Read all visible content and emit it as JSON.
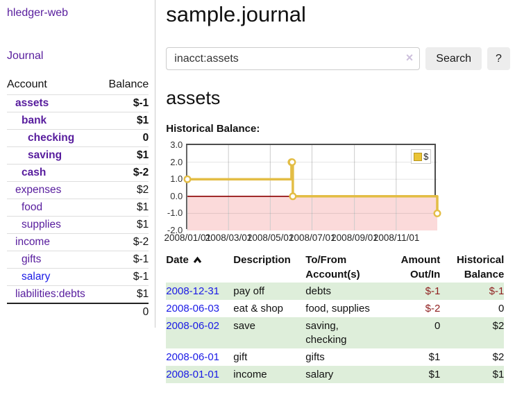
{
  "colors": {
    "link_purple": "#571c9d",
    "link_blue": "#1a1ae6",
    "negative_strong": "#9e0e0e",
    "negative_muted": "#b97f7f",
    "negative_table": "#8f1f1f",
    "row_stripe_green": "#deeeda",
    "chart_line_gold": "#e3bd45",
    "chart_negative_fill": "#fbdada",
    "chart_zero_line": "#8b0000"
  },
  "sidebar": {
    "app_title": "hledger-web",
    "journal_label": "Journal",
    "accounts": {
      "header_account": "Account",
      "header_balance": "Balance",
      "rows": [
        {
          "name": "assets",
          "balance": "$-1",
          "depth": 0,
          "bold": true,
          "balance_class": "neg-strong"
        },
        {
          "name": "bank",
          "balance": "$1",
          "depth": 1,
          "bold": true,
          "balance_class": ""
        },
        {
          "name": "checking",
          "balance": "0",
          "depth": 2,
          "bold": true,
          "balance_class": ""
        },
        {
          "name": "saving",
          "balance": "$1",
          "depth": 2,
          "bold": true,
          "balance_class": ""
        },
        {
          "name": "cash",
          "balance": "$-2",
          "depth": 1,
          "bold": true,
          "balance_class": "neg-strong"
        },
        {
          "name": "expenses",
          "balance": "$2",
          "depth": 0,
          "bold": false,
          "balance_class": ""
        },
        {
          "name": "food",
          "balance": "$1",
          "depth": 1,
          "bold": false,
          "balance_class": ""
        },
        {
          "name": "supplies",
          "balance": "$1",
          "depth": 1,
          "bold": false,
          "balance_class": ""
        },
        {
          "name": "income",
          "balance": "$-2",
          "depth": 0,
          "bold": false,
          "balance_class": "neg-muted"
        },
        {
          "name": "gifts",
          "balance": "$-1",
          "depth": 1,
          "bold": false,
          "balance_class": "neg-muted"
        },
        {
          "name": "salary",
          "balance": "$-1",
          "depth": 1,
          "bold": false,
          "balance_class": "neg-muted",
          "link_class": "blue"
        },
        {
          "name": "liabilities:debts",
          "balance": "$1",
          "depth": 0,
          "bold": false,
          "balance_class": ""
        }
      ],
      "total": "0"
    }
  },
  "main": {
    "title": "sample.journal",
    "search": {
      "value": "inacct:assets",
      "clear_icon": "×",
      "button_label": "Search",
      "help_label": "?"
    },
    "account_heading": "assets",
    "chart_label": "Historical Balance:"
  },
  "chart_data": {
    "type": "line",
    "step": true,
    "title": "Historical Balance:",
    "x_range": [
      "2008-01-01",
      "2008-12-31"
    ],
    "ylim": [
      -2,
      3
    ],
    "y_ticks": [
      "3.0",
      "2.0",
      "1.0",
      "0.0",
      "-1.0",
      "-2.0"
    ],
    "x_ticks": [
      {
        "label": "2008/01/01",
        "date": "2008-01-01"
      },
      {
        "label": "2008/03/01",
        "date": "2008-03-01"
      },
      {
        "label": "2008/05/01",
        "date": "2008-05-01"
      },
      {
        "label": "2008/07/01",
        "date": "2008-07-01"
      },
      {
        "label": "2008/09/01",
        "date": "2008-09-01"
      },
      {
        "label": "2008/11/01",
        "date": "2008-11-01"
      }
    ],
    "series": [
      {
        "name": "$",
        "color": "#e3bd45",
        "points": [
          {
            "date": "2008-01-01",
            "value": 1
          },
          {
            "date": "2008-06-01",
            "value": 2
          },
          {
            "date": "2008-06-02",
            "value": 2
          },
          {
            "date": "2008-06-03",
            "value": 0
          },
          {
            "date": "2008-12-31",
            "value": -1
          }
        ]
      }
    ],
    "legend": {
      "label": "$",
      "position": "top-right"
    },
    "grid": true,
    "negative_region_fill": "#fbdada",
    "zero_line_color": "#8b0000"
  },
  "register": {
    "headers": [
      "Date",
      "Description",
      "To/From Account(s)",
      "Amount Out/In",
      "Historical Balance"
    ],
    "sort_column": "Date",
    "sort_direction": "ascending",
    "rows": [
      {
        "date": "2008-12-31",
        "description": "pay off",
        "accounts": "debts",
        "amount": "$-1",
        "balance": "$-1",
        "amount_neg": true,
        "balance_neg": true
      },
      {
        "date": "2008-06-03",
        "description": "eat & shop",
        "accounts": "food, supplies",
        "amount": "$-2",
        "balance": "0",
        "amount_neg": true,
        "balance_neg": false
      },
      {
        "date": "2008-06-02",
        "description": "save",
        "accounts": "saving, checking",
        "amount": "0",
        "balance": "$2",
        "amount_neg": false,
        "balance_neg": false
      },
      {
        "date": "2008-06-01",
        "description": "gift",
        "accounts": "gifts",
        "amount": "$1",
        "balance": "$2",
        "amount_neg": false,
        "balance_neg": false
      },
      {
        "date": "2008-01-01",
        "description": "income",
        "accounts": "salary",
        "amount": "$1",
        "balance": "$1",
        "amount_neg": false,
        "balance_neg": false
      }
    ]
  }
}
